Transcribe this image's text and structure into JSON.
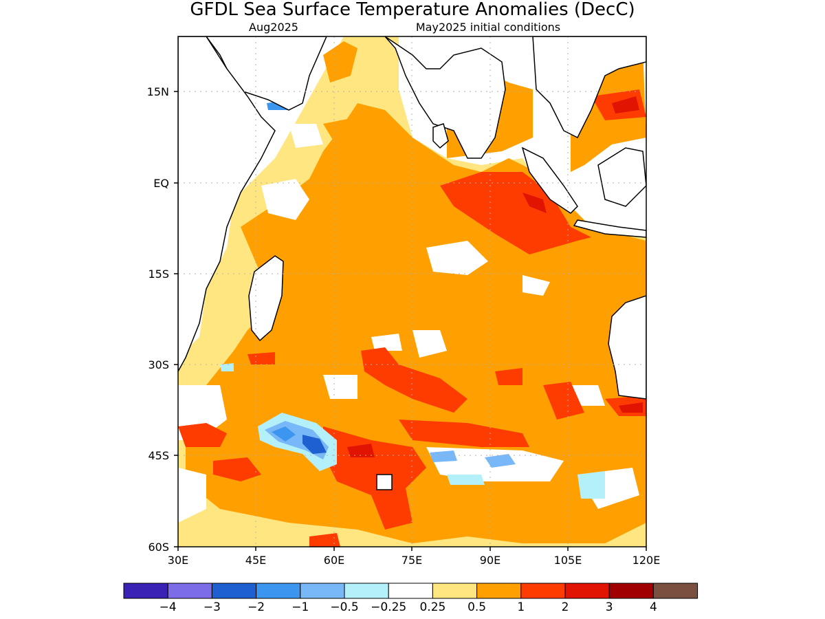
{
  "title": "GFDL Sea Surface Temperature Anomalies (DecC)",
  "subtitle_left": "Aug2025",
  "subtitle_right": "May2025 initial conditions",
  "lon_ticks": [
    "30E",
    "45E",
    "60E",
    "75E",
    "90E",
    "105E",
    "120E"
  ],
  "lat_ticks": [
    "15N",
    "EQ",
    "15S",
    "30S",
    "45S",
    "60S"
  ],
  "colorbar": {
    "colors": [
      "#3a22b4",
      "#7c6ce8",
      "#1e60d0",
      "#3c96f0",
      "#78b8f8",
      "#b4f0fa",
      "#ffffff",
      "#ffe680",
      "#ffa000",
      "#ff3c00",
      "#e01400",
      "#a00000",
      "#7a5040"
    ],
    "labels": [
      "−4",
      "−3",
      "−2",
      "−1",
      "−0.5",
      "−0.25",
      "0.25",
      "0.5",
      "1",
      "2",
      "3",
      "4"
    ]
  },
  "chart_data": {
    "type": "heatmap",
    "title": "GFDL Sea Surface Temperature Anomalies (DecC)",
    "subtitle": [
      "Aug2025",
      "May2025 initial conditions"
    ],
    "x_range": [
      "30E",
      "120E"
    ],
    "y_range": [
      "60S",
      "22N"
    ],
    "units": "DecC",
    "levels": [
      -4,
      -3,
      -2,
      -1,
      -0.5,
      -0.25,
      0.25,
      0.5,
      1,
      2,
      3,
      4
    ],
    "grid": true
  }
}
